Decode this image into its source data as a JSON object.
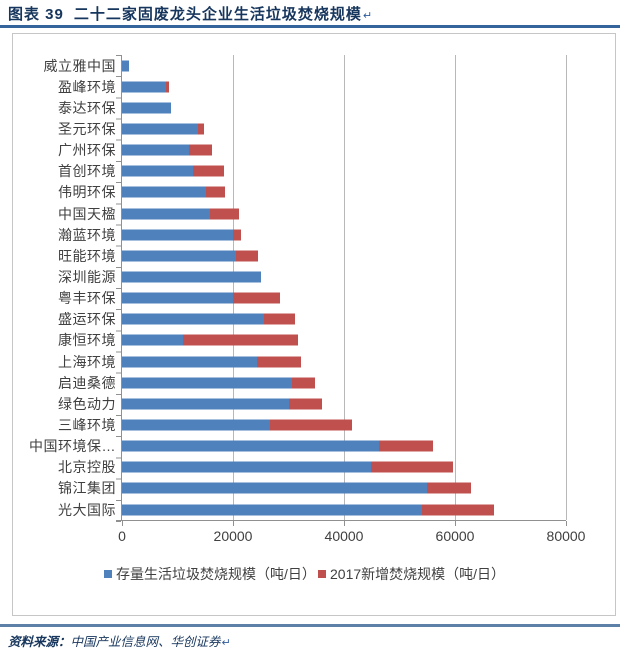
{
  "header": {
    "figure_label": "图表 39",
    "title": "二十二家固废龙头企业生活垃圾焚烧规模",
    "paragraph_mark": "↵"
  },
  "chart_data": {
    "type": "bar",
    "orientation": "horizontal",
    "stacked": true,
    "title": "二十二家固废龙头企业生活垃圾焚烧规模",
    "unit": "吨/日",
    "categories": [
      "威立雅中国",
      "盈峰环境",
      "泰达环保",
      "圣元环保",
      "广州环保",
      "首创环境",
      "伟明环保",
      "中国天楹",
      "瀚蓝环境",
      "旺能环境",
      "深圳能源",
      "粤丰环保",
      "盛运环保",
      "康恒环境",
      "上海环境",
      "启迪桑德",
      "绿色动力",
      "三峰环境",
      "中国环境保…",
      "北京控股",
      "锦江集团",
      "光大国际"
    ],
    "series": [
      {
        "name": "存量生活垃圾焚烧规模（吨/日）",
        "color": "#4F81BD",
        "values": [
          1300,
          7900,
          8800,
          13700,
          12100,
          12800,
          15100,
          15900,
          20000,
          20500,
          25100,
          20000,
          25600,
          11000,
          24400,
          30700,
          30000,
          26700,
          46300,
          44900,
          54900,
          54000
        ]
      },
      {
        "name": "2017新增焚烧规模（吨/日）",
        "color": "#C0504D",
        "values": [
          0,
          500,
          0,
          1000,
          4100,
          5600,
          3500,
          5200,
          1400,
          4000,
          0,
          8400,
          5600,
          20700,
          7900,
          4100,
          6000,
          14800,
          9700,
          14700,
          8000,
          13000
        ]
      }
    ],
    "xlim": [
      0,
      80000
    ],
    "x_ticks": [
      0,
      20000,
      40000,
      60000,
      80000
    ],
    "x_tick_labels": [
      "0",
      "20000",
      "40000",
      "60000",
      "80000"
    ],
    "grid": true,
    "legend_position": "bottom"
  },
  "footer": {
    "source_label": "资料来源：",
    "source_text": "中国产业信息网、华创证券",
    "paragraph_mark": "↵"
  },
  "colors": {
    "title_text": "#17365D",
    "rule_top": "#35639C",
    "rule_bottom": "#5C80A8",
    "frame_border": "#C6C6C6",
    "gridline": "#B8B8B8",
    "axis": "#909090",
    "axis_text": "#404040",
    "bar_blue": "#4F81BD",
    "bar_red": "#C0504D"
  }
}
